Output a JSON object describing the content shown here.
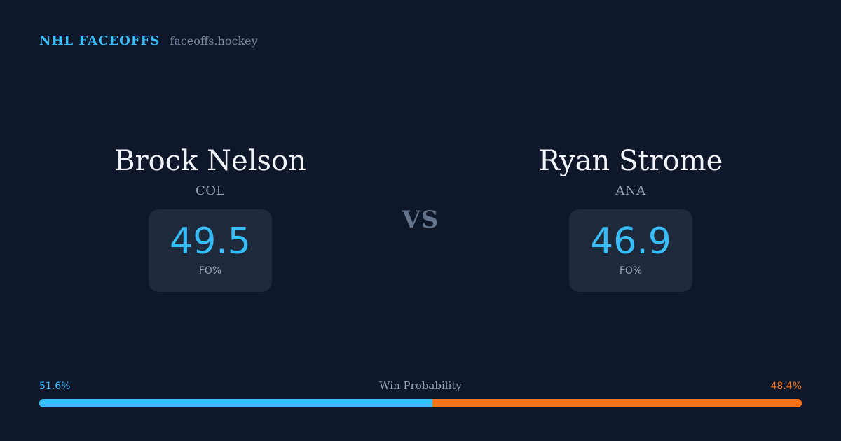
{
  "header": {
    "brand": "NHL FACEOFFS",
    "domain": "faceoffs.hockey"
  },
  "players": [
    {
      "name": "Brock Nelson",
      "team": "COL",
      "stat_value": "49.5",
      "stat_label": "FO%"
    },
    {
      "name": "Ryan Strome",
      "team": "ANA",
      "stat_value": "46.9",
      "stat_label": "FO%"
    }
  ],
  "vs_label": "VS",
  "probability": {
    "title": "Win Probability",
    "left_label": "51.6%",
    "right_label": "48.4%",
    "left_fraction": 0.516,
    "right_fraction": 0.484
  },
  "colors": {
    "background": "#0f172a",
    "accent_left": "#38bdf8",
    "accent_right": "#f97316",
    "card": "#1e293b"
  }
}
